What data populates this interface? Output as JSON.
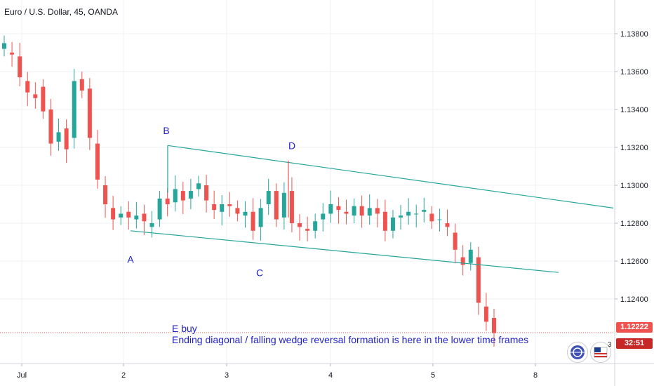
{
  "header": {
    "symbol_title": "Euro / U.S. Dollar, 45, OANDA"
  },
  "price_tags": {
    "last_price": "1.12222",
    "countdown": "32:51"
  },
  "icons": {
    "left_badge": "globe-badge-icon",
    "right_badge": "flag-badge-icon",
    "badge_count": "3"
  },
  "colors": {
    "up": "#26a69a",
    "down": "#ef5350",
    "trendline": "#26a69a",
    "annotation": "#2222cc",
    "last_price": "#ef5350"
  },
  "chart_data": {
    "type": "candlestick",
    "title": "Euro / U.S. Dollar, 45, OANDA",
    "ylim": [
      1.122,
      1.1395
    ],
    "y_ticks": [
      "1.13800",
      "1.13600",
      "1.13400",
      "1.13200",
      "1.13000",
      "1.12800",
      "1.12600",
      "1.12400"
    ],
    "x_ticks": [
      "Jul",
      "2",
      "3",
      "4",
      "5",
      "8"
    ],
    "series_trend": [
      [
        1.1372,
        1.1375
      ],
      [
        1.137,
        1.1369
      ],
      [
        1.1368,
        1.1357
      ],
      [
        1.1355,
        1.1349
      ],
      [
        1.1348,
        1.1346
      ],
      [
        1.1352,
        1.1339
      ],
      [
        1.134,
        1.1322
      ],
      [
        1.1323,
        1.1328
      ],
      [
        1.133,
        1.1319
      ],
      [
        1.1325,
        1.1355
      ],
      [
        1.1356,
        1.135
      ],
      [
        1.1351,
        1.1325
      ],
      [
        1.1322,
        1.1303
      ],
      [
        1.13,
        1.129
      ],
      [
        1.1288,
        1.1282
      ],
      [
        1.1283,
        1.1285
      ],
      [
        1.1286,
        1.1283
      ],
      [
        1.1282,
        1.1284
      ],
      [
        1.1285,
        1.1281
      ],
      [
        1.1278,
        1.128
      ],
      [
        1.1282,
        1.1293
      ],
      [
        1.1293,
        1.129
      ],
      [
        1.1291,
        1.1298
      ],
      [
        1.1297,
        1.1292
      ],
      [
        1.1293,
        1.1297
      ],
      [
        1.1298,
        1.1301
      ],
      [
        1.13,
        1.1292
      ],
      [
        1.129,
        1.1287
      ],
      [
        1.1286,
        1.129
      ],
      [
        1.129,
        1.1289
      ],
      [
        1.1288,
        1.1285
      ],
      [
        1.1284,
        1.1286
      ],
      [
        1.1286,
        1.1276
      ],
      [
        1.1278,
        1.1288
      ],
      [
        1.129,
        1.1297
      ],
      [
        1.1297,
        1.1282
      ],
      [
        1.1283,
        1.1296
      ],
      [
        1.1297,
        1.128
      ],
      [
        1.128,
        1.1278
      ],
      [
        1.1277,
        1.1276
      ],
      [
        1.1276,
        1.1281
      ],
      [
        1.1282,
        1.1285
      ],
      [
        1.1285,
        1.129
      ],
      [
        1.1289,
        1.1287
      ],
      [
        1.1286,
        1.1285
      ],
      [
        1.1284,
        1.1289
      ],
      [
        1.1289,
        1.1284
      ],
      [
        1.1284,
        1.1288
      ],
      [
        1.1288,
        1.1285
      ],
      [
        1.1286,
        1.1276
      ],
      [
        1.1276,
        1.1283
      ],
      [
        1.1283,
        1.1284
      ],
      [
        1.1284,
        1.1286
      ],
      [
        1.1285,
        1.1285
      ],
      [
        1.1286,
        1.1287
      ],
      [
        1.1285,
        1.1281
      ],
      [
        1.1282,
        1.1282
      ],
      [
        1.128,
        1.1278
      ],
      [
        1.1275,
        1.1266
      ],
      [
        1.1262,
        1.1258
      ],
      [
        1.1259,
        1.1266
      ],
      [
        1.1262,
        1.1238
      ],
      [
        1.1236,
        1.1228
      ],
      [
        1.123,
        1.1222
      ]
    ],
    "trendlines": [
      {
        "name": "upper",
        "from": [
          "B",
          1.1321
        ],
        "to": [
          "right-edge",
          1.1288
        ]
      },
      {
        "name": "lower",
        "from": [
          "A",
          1.1276
        ],
        "to": [
          "past-last-candle",
          1.1254
        ]
      }
    ],
    "annotations": [
      "A",
      "B",
      "C",
      "D",
      "E buy",
      "Ending diagonal / falling wedge reversal formation is here in the lower time frames"
    ],
    "last_price_line": 1.12222
  }
}
